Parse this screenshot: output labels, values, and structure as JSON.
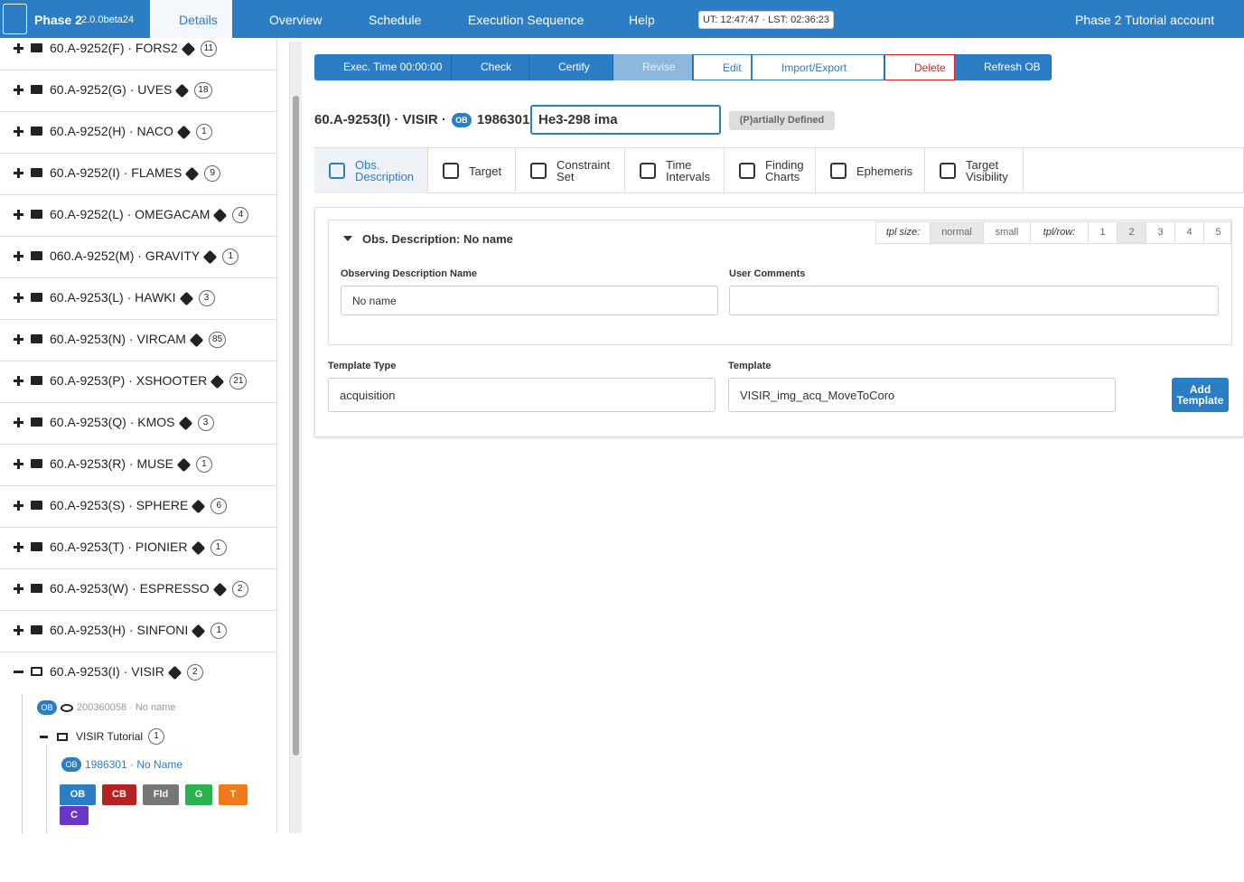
{
  "navbar": {
    "brand": "Phase 2",
    "version": "2.0.0beta24",
    "tabs": [
      "Details",
      "Overview",
      "Schedule",
      "Execution Sequence",
      "Help"
    ],
    "clock": "UT: 12:47:47 · LST: 02:36:23",
    "account": "Phase 2 Tutorial account"
  },
  "sidebar": {
    "items": [
      {
        "label": "60.A-9252(F) · FORS2",
        "count": 11
      },
      {
        "label": "60.A-9252(G) · UVES",
        "count": 18
      },
      {
        "label": "60.A-9252(H) · NACO",
        "count": 1
      },
      {
        "label": "60.A-9252(I) · FLAMES",
        "count": 9
      },
      {
        "label": "60.A-9252(L) · OMEGACAM",
        "count": 4
      },
      {
        "label": "060.A-9252(M) · GRAVITY",
        "count": 1
      },
      {
        "label": "60.A-9253(L) · HAWKI",
        "count": 3
      },
      {
        "label": "60.A-9253(N) · VIRCAM",
        "count": 85
      },
      {
        "label": "60.A-9253(P) · XSHOOTER",
        "count": 21
      },
      {
        "label": "60.A-9253(Q) · KMOS",
        "count": 3
      },
      {
        "label": "60.A-9253(R) · MUSE",
        "count": 1
      },
      {
        "label": "60.A-9253(S) · SPHERE",
        "count": 6
      },
      {
        "label": "60.A-9253(T) · PIONIER",
        "count": 1
      },
      {
        "label": "60.A-9253(W) · ESPRESSO",
        "count": 2
      },
      {
        "label": "60.A-9253(H) · SINFONI",
        "count": 1
      },
      {
        "label": "60.A-9253(I) · VISIR",
        "count": 2
      }
    ],
    "expanded": {
      "ob_badge": "OB",
      "ob_label": "200360058 · No name",
      "folder": {
        "label": "VISIR Tutorial",
        "count": 1
      },
      "child_ob": {
        "badge": "OB",
        "label": "1986301 · No Name"
      },
      "buttons": [
        "OB",
        "CB",
        "Fld",
        "G",
        "T",
        "C"
      ]
    }
  },
  "toolbar": [
    "Exec. Time 00:00:00",
    "Check",
    "Certify",
    "Revise",
    "Edit",
    "Import/Export",
    "Delete",
    "Refresh OB"
  ],
  "header": {
    "run": "60.A-9253(I) · VISIR ·",
    "badge": "OB",
    "id": "1986301",
    "name": "He3-298 ima",
    "status": "(P)artially Defined"
  },
  "tabs": [
    "Obs. Description",
    "Target",
    "Constraint Set",
    "Time Intervals",
    "Finding Charts",
    "Ephemeris",
    "Target Visibility"
  ],
  "panel": {
    "title": "Obs. Description: No name",
    "tpl_size_label": "tpl size:",
    "tpl_sizes": [
      "normal",
      "small"
    ],
    "tpl_row_label": "tpl/row:",
    "tpl_rows": [
      1,
      2,
      3,
      4,
      5
    ],
    "name_label": "Observing Description Name",
    "name_value": "No name",
    "comments_label": "User Comments",
    "template_type_label": "Template Type",
    "template_type": "acquisition",
    "template_label": "Template",
    "template": "VISIR_img_acq_MoveToCoro",
    "add_button": "Add Template"
  }
}
